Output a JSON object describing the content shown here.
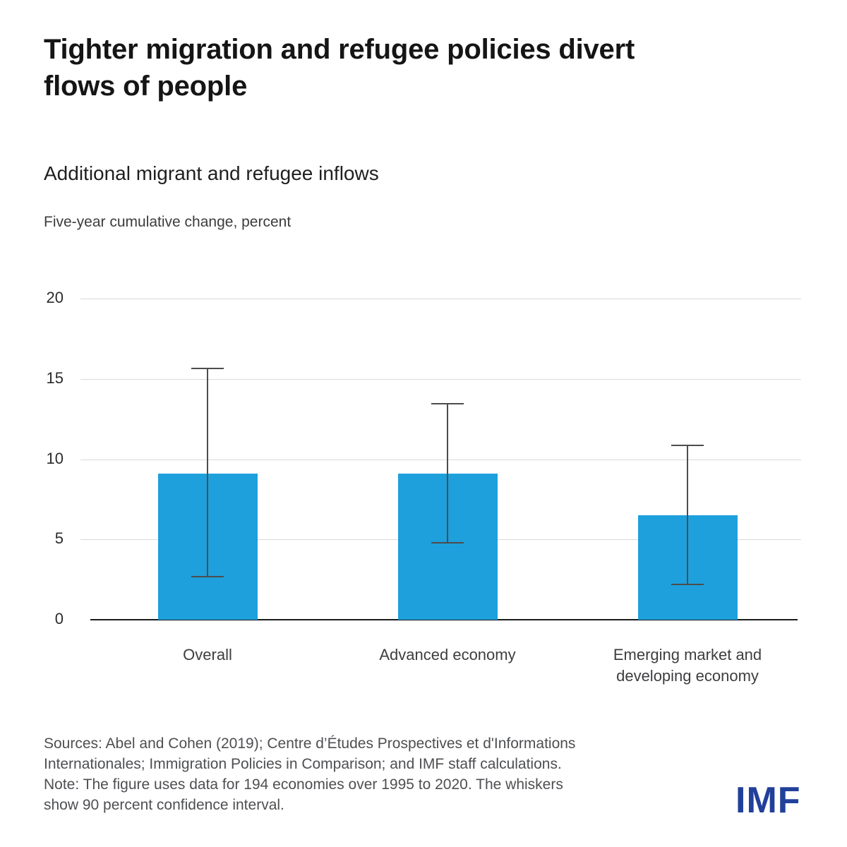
{
  "header": {
    "title": "Tighter migration and refugee policies divert flows of people",
    "title_lines": [
      "Tighter migration and refugee policies divert",
      "flows of people"
    ]
  },
  "chart_data": {
    "type": "bar",
    "title": "Additional migrant and refugee inflows",
    "ylabel": "Five-year cumulative change, percent",
    "xlabel": "",
    "ylim": [
      0,
      20
    ],
    "yticks": [
      0,
      5,
      10,
      15,
      20
    ],
    "grid": true,
    "legend": "none",
    "categories": [
      "Overall",
      "Advanced economy",
      "Emerging market and developing economy"
    ],
    "values": [
      9.1,
      9.1,
      6.5
    ],
    "whisker_low": [
      2.7,
      4.8,
      2.2
    ],
    "whisker_high": [
      15.7,
      13.5,
      10.9
    ],
    "whisker_meaning": "90 percent confidence interval"
  },
  "footer": {
    "sources": "Sources: Abel and Cohen (2019); Centre d’Études Prospectives et d'Informations Internationales; Immigration Policies in Comparison; and IMF staff calculations.",
    "note": "Note: The figure uses data for 194 economies over 1995 to 2020. The whiskers show 90 percent confidence interval.",
    "lines": [
      "Sources: Abel and Cohen (2019); Centre d’Études Prospectives et d'Informations",
      "Internationales; Immigration Policies in Comparison; and IMF staff calculations.",
      "Note: The figure uses data for 194 economies over 1995 to 2020. The whiskers",
      "show 90 percent confidence interval."
    ],
    "logo": "IMF"
  },
  "colors": {
    "bar": "#1EA0DC",
    "whisker": "#4d4d4d",
    "grid": "#d9d9d9",
    "axis": "#1a1a1a",
    "logo": "#21409A",
    "title_text": "#151515",
    "muted_text": "#4e4f52"
  }
}
